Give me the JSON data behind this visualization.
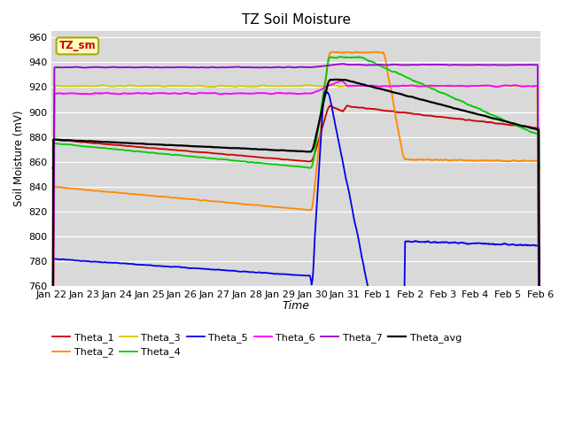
{
  "title": "TZ Soil Moisture",
  "xlabel": "Time",
  "ylabel": "Soil Moisture (mV)",
  "label_box": "TZ_sm",
  "ylim": [
    760,
    965
  ],
  "yticks": [
    760,
    780,
    800,
    820,
    840,
    860,
    880,
    900,
    920,
    940,
    960
  ],
  "bg_color": "#d9d9d9",
  "series_colors": {
    "Theta_1": "#cc0000",
    "Theta_2": "#ff8800",
    "Theta_3": "#cccc00",
    "Theta_4": "#00cc00",
    "Theta_5": "#0000ee",
    "Theta_6": "#ff00ff",
    "Theta_7": "#9900cc",
    "Theta_avg": "#000000"
  },
  "x_labels": [
    "Jan 22",
    "Jan 23",
    "Jan 24",
    "Jan 25",
    "Jan 26",
    "Jan 27",
    "Jan 28",
    "Jan 29",
    "Jan 30",
    "Jan 31",
    "Feb 1",
    "Feb 2",
    "Feb 3",
    "Feb 4",
    "Feb 5",
    "Feb 6"
  ]
}
